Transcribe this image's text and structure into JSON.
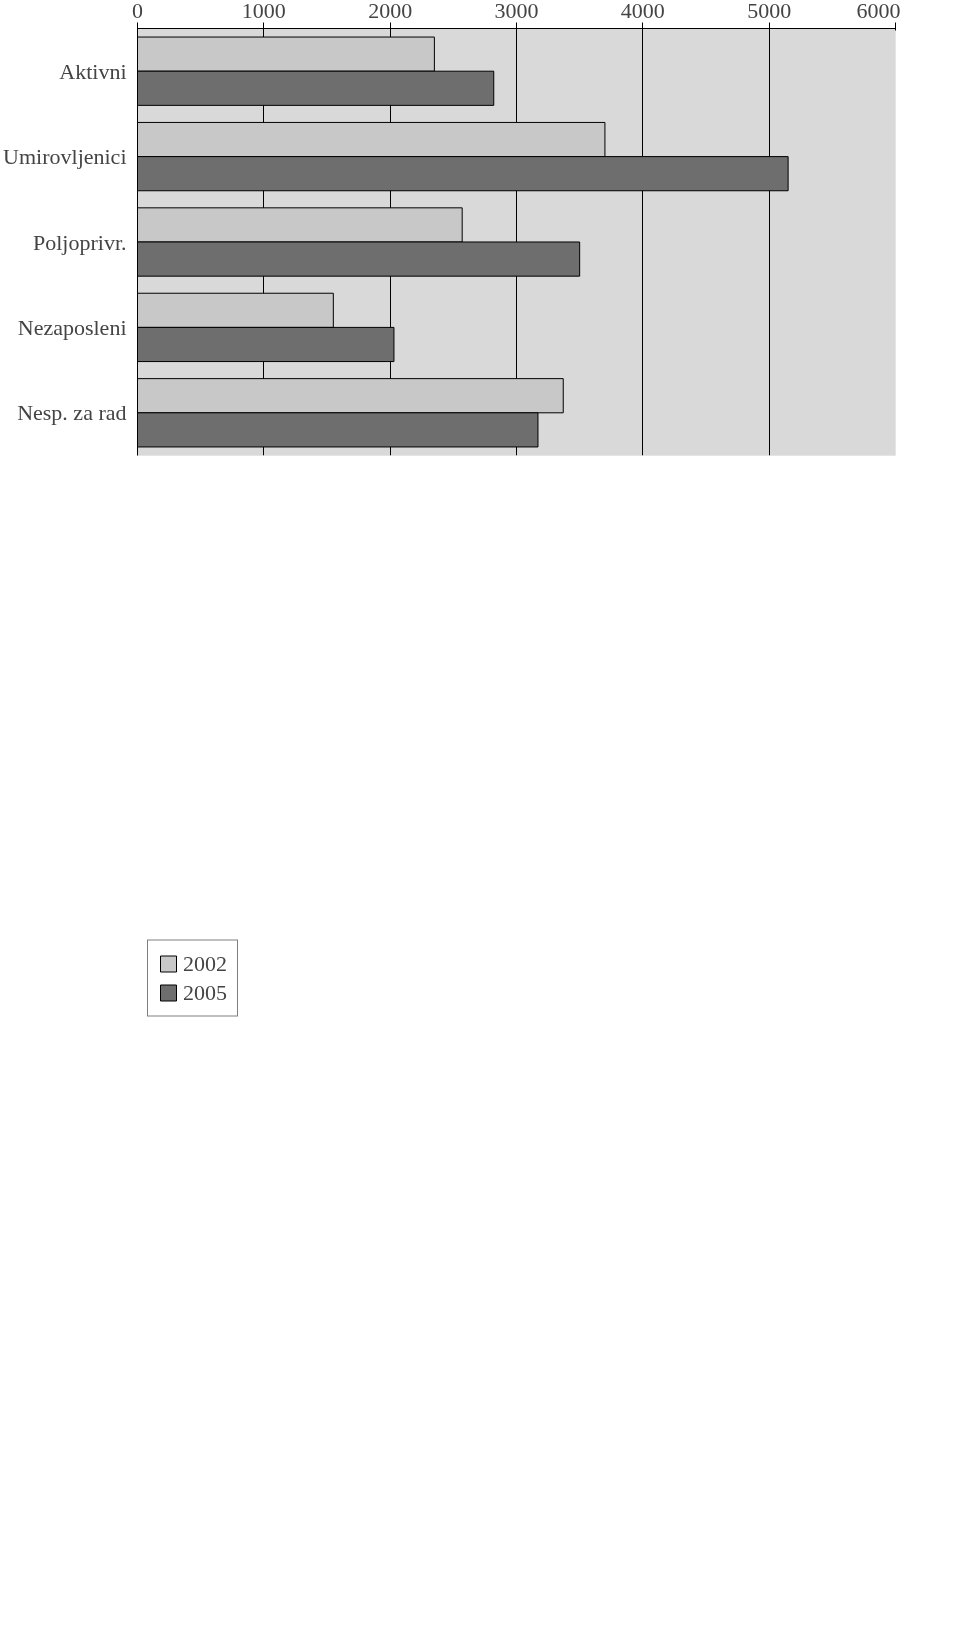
{
  "chart_data": {
    "type": "bar",
    "orientation": "horizontal",
    "categories": [
      "Aktivni",
      "Umirovljenici",
      "Poljoprivr.",
      "Nezaposleni",
      "Nesp. za rad"
    ],
    "series": [
      {
        "name": "2002",
        "color": "#c8c8c8",
        "values": [
          2350,
          3700,
          2570,
          1550,
          3370
        ]
      },
      {
        "name": "2005",
        "color": "#6e6e6e",
        "values": [
          2820,
          5150,
          3500,
          2030,
          3170
        ]
      }
    ],
    "xlim": [
      0,
      6000
    ],
    "xticks": [
      0,
      1000,
      2000,
      3000,
      4000,
      5000,
      6000
    ],
    "grid": "x",
    "legend": "bottom left"
  }
}
